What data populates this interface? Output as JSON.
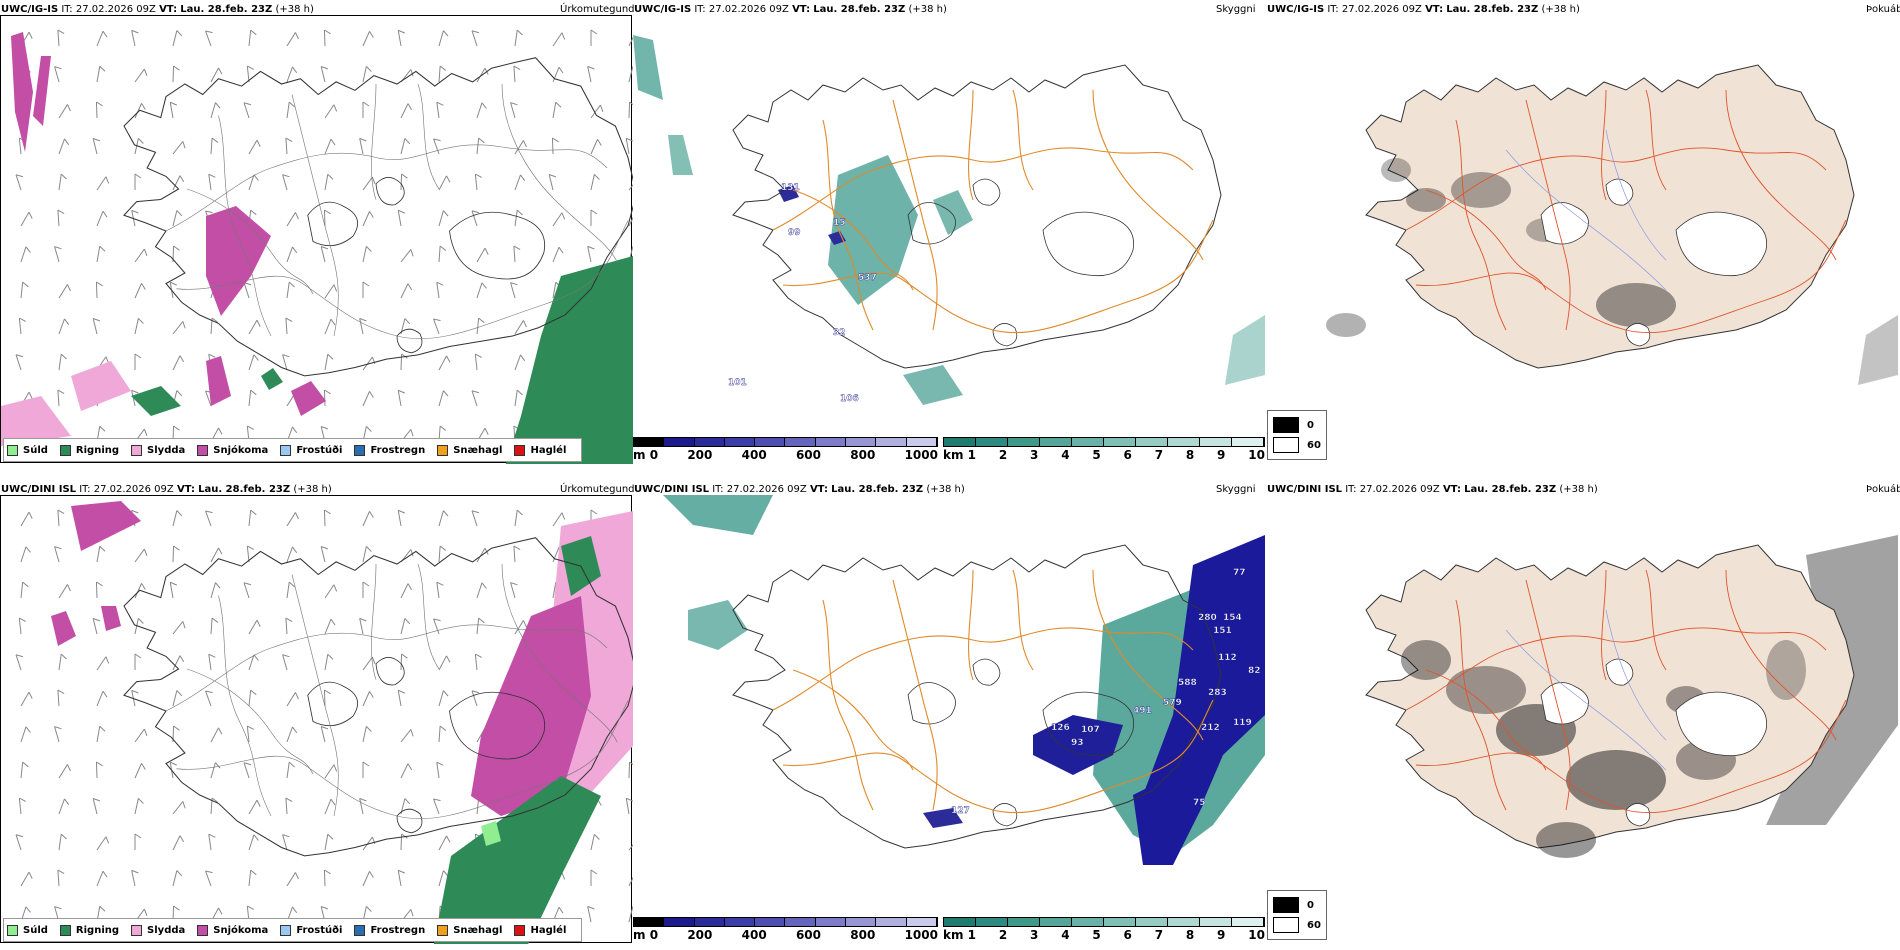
{
  "panels": [
    {
      "title_model": "UWC/IG-IS",
      "title_it_label": "IT:",
      "title_it": "27.02.2026 09Z",
      "title_vt_label": "VT:",
      "title_vt": "Lau. 28.feb. 23Z",
      "title_lead": "(+38 h)",
      "right": "Úrkomutegund"
    },
    {
      "title_model": "UWC/IG-IS",
      "title_it_label": "IT:",
      "title_it": "27.02.2026 09Z",
      "title_vt_label": "VT:",
      "title_vt": "Lau. 28.feb. 23Z",
      "title_lead": "(+38 h)",
      "right": "Skyggni"
    },
    {
      "title_model": "UWC/IG-IS",
      "title_it_label": "IT:",
      "title_it": "27.02.2026 09Z",
      "title_vt_label": "VT:",
      "title_vt": "Lau. 28.feb. 23Z",
      "title_lead": "(+38 h)",
      "right": "Þokuábendi"
    },
    {
      "title_model": "UWC/DINI ISL",
      "title_it_label": "IT:",
      "title_it": "27.02.2026 09Z",
      "title_vt_label": "VT:",
      "title_vt": "Lau. 28.feb. 23Z",
      "title_lead": "(+38 h)",
      "right": "Úrkomutegund"
    },
    {
      "title_model": "UWC/DINI ISL",
      "title_it_label": "IT:",
      "title_it": "27.02.2026 09Z",
      "title_vt_label": "VT:",
      "title_vt": "Lau. 28.feb. 23Z",
      "title_lead": "(+38 h)",
      "right": "Skyggni"
    },
    {
      "title_model": "UWC/DINI ISL",
      "title_it_label": "IT:",
      "title_it": "27.02.2026 09Z",
      "title_vt_label": "VT:",
      "title_vt": "Lau. 28.feb. 23Z",
      "title_lead": "(+38 h)",
      "right": "Þokuábendi"
    }
  ],
  "precip_legend": [
    {
      "label": "Súld",
      "color": "#90ee90"
    },
    {
      "label": "Rigning",
      "color": "#2e8b57"
    },
    {
      "label": "Slydda",
      "color": "#f0a8d8"
    },
    {
      "label": "Snjókoma",
      "color": "#c24ea6"
    },
    {
      "label": "Frostúði",
      "color": "#9cc8ee"
    },
    {
      "label": "Frostregn",
      "color": "#2a6eb0"
    },
    {
      "label": "Snæhagl",
      "color": "#f0a020"
    },
    {
      "label": "Haglél",
      "color": "#dd1111"
    }
  ],
  "visibility_legend": {
    "m_unit": "m",
    "m_ticks": [
      "0",
      "200",
      "400",
      "600",
      "800",
      "1000"
    ],
    "km_unit": "km",
    "km_ticks": [
      "1",
      "2",
      "3",
      "4",
      "5",
      "6",
      "7",
      "8",
      "9",
      "10"
    ],
    "m_colors": [
      "#000000",
      "#1a1a8a",
      "#2b2b9a",
      "#3c3ca6",
      "#4e4eb0",
      "#6464bc",
      "#7c7cc8",
      "#9696d4",
      "#b0b0e0",
      "#cacaec"
    ],
    "km_colors": [
      "#1f7a70",
      "#2e8a80",
      "#409888",
      "#55a598",
      "#6ab2a8",
      "#80bfb6",
      "#96ccc4",
      "#aed8d2",
      "#c6e4e0",
      "#ddf0ee"
    ]
  },
  "fog_legend": {
    "values": [
      "0",
      "60"
    ]
  },
  "top_vis_labels": [
    "131",
    "15",
    "99",
    "537",
    "32",
    "101",
    "106"
  ],
  "bottom_vis_labels": [
    "77",
    "280",
    "154",
    "151",
    "112",
    "82",
    "588",
    "283",
    "491",
    "579",
    "126",
    "107",
    "212",
    "119",
    "93",
    "75",
    "127"
  ]
}
